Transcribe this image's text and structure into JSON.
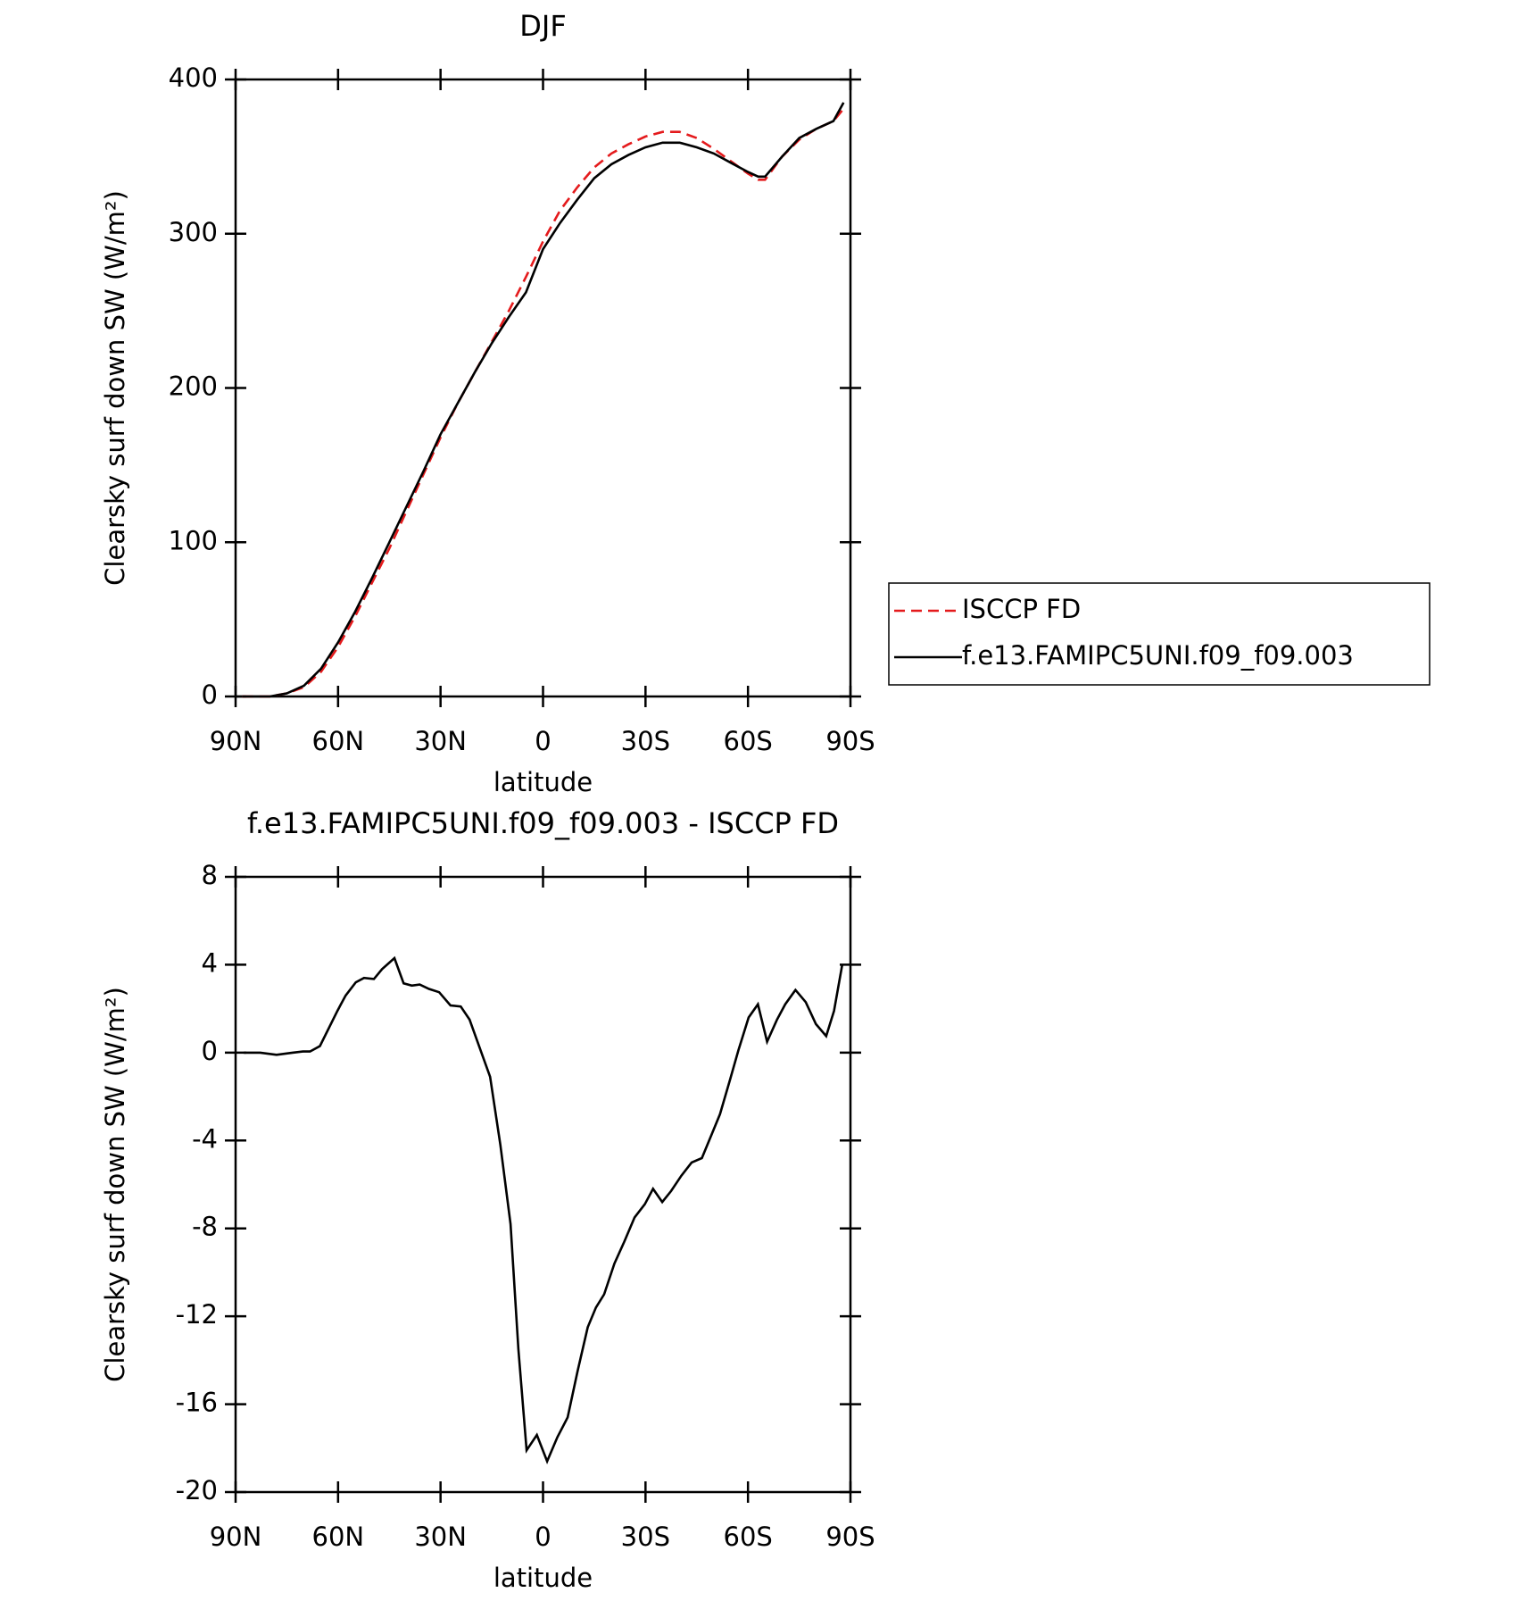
{
  "chart_data": [
    {
      "type": "line",
      "title": "DJF",
      "xlabel": "latitude",
      "ylabel": "Clearsky surf down SW (W/m²)",
      "xlim": [
        90,
        -90
      ],
      "ylim": [
        0,
        400
      ],
      "xticks": [
        {
          "value": 90,
          "label": "90N"
        },
        {
          "value": 60,
          "label": "60N"
        },
        {
          "value": 30,
          "label": "30N"
        },
        0,
        {
          "value": -30,
          "label": "30S"
        },
        {
          "value": -60,
          "label": "60S"
        },
        {
          "value": -90,
          "label": "90S"
        }
      ],
      "yticks": [
        0,
        100,
        200,
        300,
        400
      ],
      "legend": "right",
      "x": [
        88,
        85,
        80,
        75,
        70,
        65,
        60,
        55,
        50,
        45,
        40,
        35,
        30,
        25,
        20,
        15,
        10,
        5,
        0,
        -5,
        -10,
        -15,
        -20,
        -25,
        -30,
        -35,
        -40,
        -45,
        -50,
        -55,
        -60,
        -63,
        -65,
        -70,
        -75,
        -80,
        -85,
        -88
      ],
      "series": [
        {
          "name": "ISCCP FD",
          "color": "#e41a1c",
          "line_style": "dashed",
          "values": [
            0,
            0,
            0,
            2,
            6,
            16,
            32,
            52,
            74,
            96,
            120,
            144,
            168,
            190,
            210,
            230,
            250,
            272,
            295,
            315,
            330,
            343,
            352,
            358,
            363,
            366,
            366,
            362,
            355,
            347,
            339,
            335,
            335,
            350,
            361,
            368,
            373,
            381
          ]
        },
        {
          "name": "f.e13.FAMIPC5UNI.f09_f09.003",
          "color": "#000000",
          "line_style": "solid",
          "values": [
            0,
            0,
            0,
            2,
            7,
            18,
            35,
            55,
            77,
            100,
            123,
            146,
            170,
            190,
            210,
            229,
            246,
            262,
            290,
            307,
            322,
            336,
            345,
            351,
            356,
            359,
            359,
            356,
            352,
            346,
            340,
            337,
            337,
            350,
            362,
            368,
            373,
            385
          ]
        }
      ]
    },
    {
      "type": "line",
      "title": "f.e13.FAMIPC5UNI.f09_f09.003 - ISCCP FD",
      "xlabel": "latitude",
      "ylabel": "Clearsky surf down SW (W/m²)",
      "xlim": [
        90,
        -90
      ],
      "ylim": [
        -20,
        8
      ],
      "xticks": [
        {
          "value": 90,
          "label": "90N"
        },
        {
          "value": 60,
          "label": "60N"
        },
        {
          "value": 30,
          "label": "30N"
        },
        0,
        {
          "value": -30,
          "label": "30S"
        },
        {
          "value": -60,
          "label": "60S"
        },
        {
          "value": -90,
          "label": "90S"
        }
      ],
      "yticks": [
        -20,
        -16,
        -12,
        -8,
        -4,
        0,
        4,
        8
      ],
      "color": "#000000",
      "x": [
        87.6,
        82.8,
        78,
        73.3,
        70.3,
        68.2,
        65.3,
        60.2,
        57.8,
        54.8,
        52.4,
        49.5,
        47.1,
        43.5,
        40.8,
        38.4,
        36.1,
        33.4,
        30.4,
        27.1,
        24.1,
        21.5,
        18.5,
        15.5,
        12.5,
        9.5,
        7.2,
        4.8,
        1.8,
        -1.2,
        -4.2,
        -7.2,
        -10.1,
        -13.1,
        -15.5,
        -17.9,
        -20.9,
        -23.8,
        -26.8,
        -29.8,
        -32.2,
        -34.9,
        -37.5,
        -40.5,
        -43.5,
        -46.5,
        -48.9,
        -51.8,
        -54.8,
        -57.2,
        -60.2,
        -62.9,
        -65.6,
        -68.5,
        -70.9,
        -73.9,
        -76.9,
        -79.9,
        -82.9,
        -85.2,
        -87.6
      ],
      "values": [
        0,
        0,
        -0.1,
        0,
        0.05,
        0.05,
        0.3,
        1.9,
        2.6,
        3.2,
        3.4,
        3.35,
        3.8,
        4.3,
        3.15,
        3.05,
        3.1,
        2.9,
        2.75,
        2.15,
        2.1,
        1.5,
        0.2,
        -1.1,
        -4.2,
        -7.8,
        -13.5,
        -18.1,
        -17.4,
        -18.6,
        -17.5,
        -16.6,
        -14.5,
        -12.5,
        -11.6,
        -11,
        -9.6,
        -8.6,
        -7.5,
        -6.9,
        -6.2,
        -6.8,
        -6.3,
        -5.6,
        -5,
        -4.8,
        -3.9,
        -2.8,
        -1.2,
        0.1,
        1.6,
        2.2,
        0.5,
        1.5,
        2.2,
        2.85,
        2.3,
        1.3,
        0.75,
        1.9,
        4
      ]
    }
  ]
}
